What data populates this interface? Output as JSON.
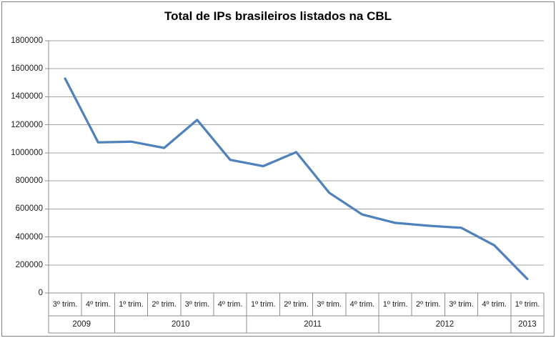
{
  "chart_data": {
    "type": "line",
    "title": "Total de IPs brasileiros listados na CBL",
    "xlabel": "",
    "ylabel": "",
    "ylim": [
      0,
      1800000
    ],
    "ytick_step": 200000,
    "yticks": [
      "0",
      "200000",
      "400000",
      "600000",
      "800000",
      "1000000",
      "1200000",
      "1400000",
      "1600000",
      "1800000"
    ],
    "grid": "horizontal",
    "legend": "none",
    "categories": [
      "3º trim.",
      "4º trim.",
      "1º trim.",
      "2º trim.",
      "3º trim.",
      "4º trim.",
      "1º trim.",
      "2º trim.",
      "3º trim.",
      "4º trim.",
      "1º trim.",
      "2º trim.",
      "3º trim.",
      "4º trim.",
      "1º trim."
    ],
    "year_groups": [
      {
        "label": "2009",
        "span": 2
      },
      {
        "label": "2010",
        "span": 4
      },
      {
        "label": "2011",
        "span": 4
      },
      {
        "label": "2012",
        "span": 4
      },
      {
        "label": "2013",
        "span": 1
      }
    ],
    "values": [
      1530000,
      1075000,
      1080000,
      1035000,
      1235000,
      950000,
      905000,
      1005000,
      715000,
      560000,
      500000,
      480000,
      465000,
      340000,
      100000
    ]
  },
  "colors": {
    "line": "#4F81BD",
    "gridline": "#A3A3A3",
    "axis": "#8E8E8E",
    "frame_border": "#808080",
    "text": "#1a1a1a"
  }
}
